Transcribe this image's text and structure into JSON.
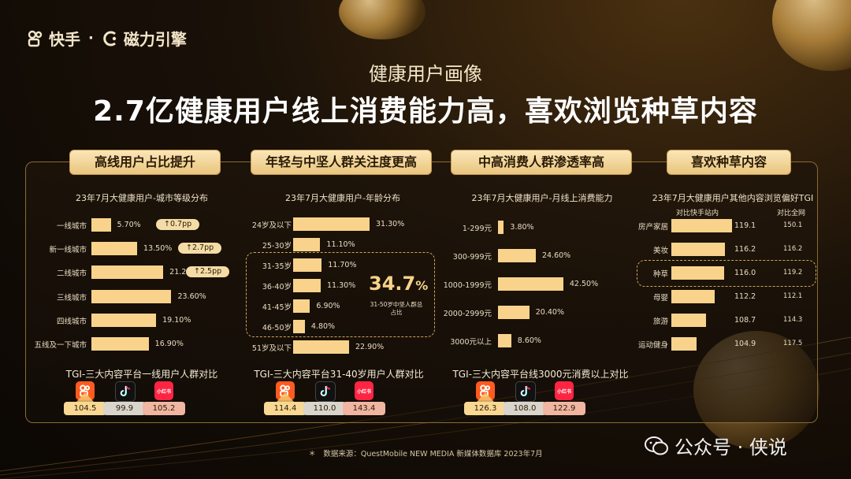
{
  "logo": {
    "kuaishou": "快手",
    "dot": "·",
    "cili": "磁力引擎"
  },
  "subtitle": "健康用户画像",
  "title": "2.7亿健康用户线上消费能力高，喜欢浏览种草内容",
  "section_labels": [
    "高线用户占比提升",
    "年轻与中坚人群关注度更高",
    "中高消费人群渗透率高",
    "喜欢种草内容"
  ],
  "highlight": {
    "value": "34.7",
    "unit": "%",
    "note": "31-50岁中坚人群总占比"
  },
  "tgi_titles": [
    "TGI-三大内容平台一线用户人群对比",
    "TGI-三大内容平台31-40岁用户人群对比",
    "TGI-三大内容平台线3000元消费以上对比"
  ],
  "tgi_values": [
    [
      "104.5",
      "99.9",
      "105.2"
    ],
    [
      "114.4",
      "110.0",
      "143.4"
    ],
    [
      "126.3",
      "108.0",
      "122.9"
    ]
  ],
  "xhs_label": "小红书",
  "source": "＊　数据来源：QuestMobile NEW MEDIA 新媒体数据库 2023年7月",
  "watermark": "公众号 · 侠说",
  "chart_data": [
    {
      "type": "bar",
      "title": "23年7月大健康用户-城市等级分布",
      "categories": [
        "一线城市",
        "新一线城市",
        "二线城市",
        "三线城市",
        "四线城市",
        "五线及一下城市"
      ],
      "values": [
        5.7,
        13.5,
        21.2,
        23.6,
        19.1,
        16.9
      ],
      "value_labels": [
        "5.70%",
        "13.50%",
        "21.20%",
        "23.60%",
        "19.10%",
        "16.90%"
      ],
      "badges": [
        "↑0.7pp",
        "↑2.7pp",
        "↑2.5pp"
      ],
      "orientation": "horizontal"
    },
    {
      "type": "bar",
      "title": "23年7月大健康用户-年龄分布",
      "categories": [
        "24岁及以下",
        "25-30岁",
        "31-35岁",
        "36-40岁",
        "41-45岁",
        "46-50岁",
        "51岁及以下"
      ],
      "values": [
        31.3,
        11.1,
        11.7,
        11.3,
        6.9,
        4.8,
        22.9
      ],
      "value_labels": [
        "31.30%",
        "11.10%",
        "11.70%",
        "11.30%",
        "6.90%",
        "4.80%",
        "22.90%"
      ],
      "orientation": "horizontal"
    },
    {
      "type": "bar",
      "title": "23年7月大健康用户-月线上消费能力",
      "categories": [
        "1-299元",
        "300-999元",
        "1000-1999元",
        "2000-2999元",
        "3000元以上"
      ],
      "values": [
        3.8,
        24.6,
        42.5,
        20.4,
        8.6
      ],
      "value_labels": [
        "3.80%",
        "24.60%",
        "42.50%",
        "20.40%",
        "8.60%"
      ],
      "orientation": "horizontal"
    },
    {
      "type": "bar",
      "title": "23年7月大健康用户其他内容浏览偏好TGI",
      "column_labels": [
        "对比快手站内",
        "对比全网"
      ],
      "categories": [
        "房产家居",
        "美妆",
        "种草",
        "母婴",
        "旅游",
        "运动健身"
      ],
      "values": [
        119.1,
        116.2,
        116.0,
        112.2,
        108.7,
        104.9
      ],
      "value_labels": [
        "119.1",
        "116.2",
        "116.0",
        "112.2",
        "108.7",
        "104.9"
      ],
      "network_values": [
        "150.1",
        "116.2",
        "119.2",
        "112.1",
        "114.3",
        "117.5"
      ],
      "orientation": "horizontal"
    }
  ]
}
